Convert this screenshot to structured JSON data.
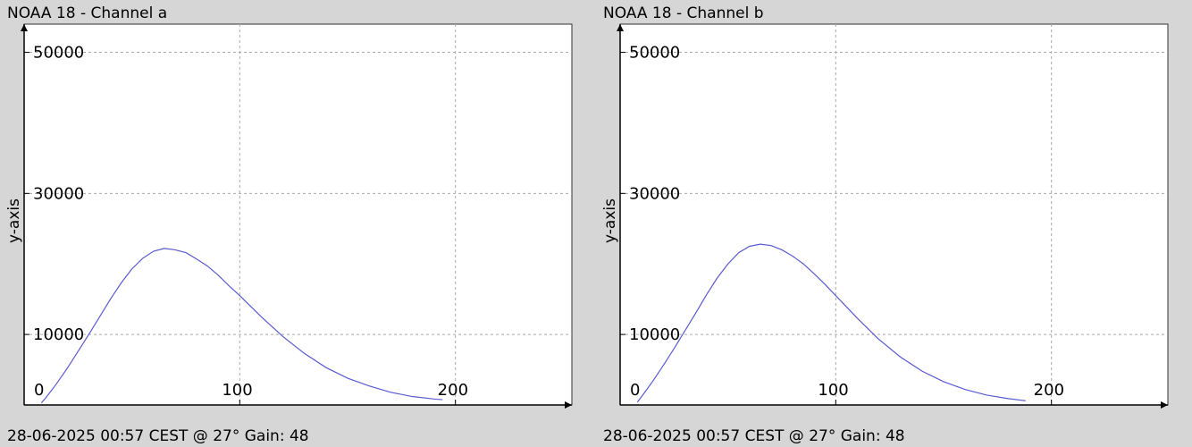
{
  "chart_data": [
    {
      "type": "line",
      "title": "NOAA 18 - Channel a",
      "ylabel": "y-axis",
      "footer": "28-06-2025 00:57 CEST @ 27° Gain: 48",
      "xlim": [
        0,
        254
      ],
      "ylim": [
        0,
        54000
      ],
      "xticks": [
        0,
        100,
        200
      ],
      "yticks": [
        10000,
        30000,
        50000
      ],
      "grid": true,
      "x": [
        8,
        10,
        15,
        20,
        25,
        30,
        35,
        40,
        45,
        50,
        55,
        60,
        65,
        70,
        75,
        80,
        85,
        90,
        95,
        100,
        110,
        120,
        130,
        140,
        150,
        160,
        170,
        180,
        190,
        194
      ],
      "series": [
        {
          "color": "#5a5ad0",
          "values": [
            300,
            1000,
            3000,
            5200,
            7600,
            10000,
            12500,
            15000,
            17300,
            19300,
            20800,
            21800,
            22200,
            22000,
            21600,
            20700,
            19700,
            18400,
            16900,
            15500,
            12500,
            9700,
            7300,
            5300,
            3800,
            2700,
            1800,
            1200,
            850,
            750
          ]
        }
      ]
    },
    {
      "type": "line",
      "title": "NOAA 18 - Channel b",
      "ylabel": "y-axis",
      "footer": "28-06-2025 00:57 CEST @ 27° Gain: 48",
      "xlim": [
        0,
        254
      ],
      "ylim": [
        0,
        54000
      ],
      "xticks": [
        0,
        100,
        200
      ],
      "yticks": [
        10000,
        30000,
        50000
      ],
      "grid": true,
      "x": [
        8,
        10,
        15,
        20,
        25,
        30,
        35,
        40,
        45,
        50,
        55,
        60,
        65,
        70,
        75,
        80,
        85,
        90,
        95,
        100,
        110,
        120,
        130,
        140,
        150,
        160,
        170,
        180,
        188
      ],
      "series": [
        {
          "color": "#5a5ad0",
          "values": [
            400,
            1200,
            3300,
            5600,
            8000,
            10500,
            13000,
            15600,
            18000,
            20000,
            21600,
            22500,
            22800,
            22600,
            22000,
            21100,
            20000,
            18600,
            17100,
            15500,
            12300,
            9300,
            6800,
            4800,
            3300,
            2200,
            1400,
            900,
            600
          ]
        }
      ]
    }
  ]
}
